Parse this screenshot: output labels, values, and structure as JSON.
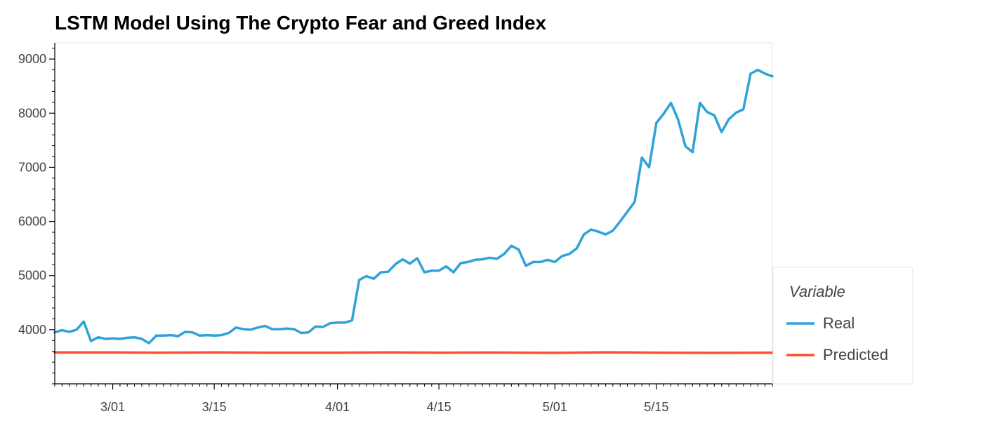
{
  "chart_data": {
    "type": "line",
    "title": "LSTM Model Using The Crypto Fear and Greed Index",
    "xlabel": "",
    "ylabel": "",
    "x_start": "2018-02-21",
    "x_end": "2018-05-31",
    "ylim": [
      3000,
      9300
    ],
    "y_ticks": [
      4000,
      5000,
      6000,
      7000,
      8000,
      9000
    ],
    "x_ticks": [
      {
        "label": "3/01",
        "date": "2018-03-01"
      },
      {
        "label": "3/15",
        "date": "2018-03-15"
      },
      {
        "label": "4/01",
        "date": "2018-04-01"
      },
      {
        "label": "4/15",
        "date": "2018-04-15"
      },
      {
        "label": "5/01",
        "date": "2018-05-01"
      },
      {
        "label": "5/15",
        "date": "2018-05-15"
      }
    ],
    "grid": false,
    "legend_title": "Variable",
    "legend_position": "right",
    "series": [
      {
        "name": "Real",
        "color": "#30a2da",
        "x": [
          "2018-02-21",
          "2018-02-22",
          "2018-02-23",
          "2018-02-24",
          "2018-02-25",
          "2018-02-26",
          "2018-02-27",
          "2018-02-28",
          "2018-03-01",
          "2018-03-02",
          "2018-03-03",
          "2018-03-04",
          "2018-03-05",
          "2018-03-06",
          "2018-03-07",
          "2018-03-08",
          "2018-03-09",
          "2018-03-10",
          "2018-03-11",
          "2018-03-12",
          "2018-03-13",
          "2018-03-14",
          "2018-03-15",
          "2018-03-16",
          "2018-03-17",
          "2018-03-18",
          "2018-03-19",
          "2018-03-20",
          "2018-03-21",
          "2018-03-22",
          "2018-03-23",
          "2018-03-24",
          "2018-03-25",
          "2018-03-26",
          "2018-03-27",
          "2018-03-28",
          "2018-03-29",
          "2018-03-30",
          "2018-03-31",
          "2018-04-01",
          "2018-04-02",
          "2018-04-03",
          "2018-04-04",
          "2018-04-05",
          "2018-04-06",
          "2018-04-07",
          "2018-04-08",
          "2018-04-09",
          "2018-04-10",
          "2018-04-11",
          "2018-04-12",
          "2018-04-13",
          "2018-04-14",
          "2018-04-15",
          "2018-04-16",
          "2018-04-17",
          "2018-04-18",
          "2018-04-19",
          "2018-04-20",
          "2018-04-21",
          "2018-04-22",
          "2018-04-23",
          "2018-04-24",
          "2018-04-25",
          "2018-04-26",
          "2018-04-27",
          "2018-04-28",
          "2018-04-29",
          "2018-04-30",
          "2018-05-01",
          "2018-05-02",
          "2018-05-03",
          "2018-05-04",
          "2018-05-05",
          "2018-05-06",
          "2018-05-07",
          "2018-05-08",
          "2018-05-09",
          "2018-05-10",
          "2018-05-11",
          "2018-05-12",
          "2018-05-13",
          "2018-05-14",
          "2018-05-15",
          "2018-05-16",
          "2018-05-17",
          "2018-05-18",
          "2018-05-19",
          "2018-05-20",
          "2018-05-21",
          "2018-05-22",
          "2018-05-23",
          "2018-05-24",
          "2018-05-25",
          "2018-05-26",
          "2018-05-27",
          "2018-05-28",
          "2018-05-29",
          "2018-05-30",
          "2018-05-31"
        ],
        "values": [
          3950,
          3990,
          3960,
          4000,
          4150,
          3790,
          3860,
          3830,
          3840,
          3830,
          3850,
          3860,
          3830,
          3750,
          3890,
          3890,
          3900,
          3880,
          3960,
          3950,
          3890,
          3900,
          3890,
          3900,
          3940,
          4040,
          4010,
          4000,
          4040,
          4070,
          4010,
          4010,
          4020,
          4010,
          3940,
          3950,
          4060,
          4050,
          4120,
          4130,
          4130,
          4170,
          4920,
          4990,
          4940,
          5060,
          5070,
          5210,
          5300,
          5220,
          5320,
          5060,
          5090,
          5090,
          5170,
          5060,
          5230,
          5250,
          5290,
          5300,
          5330,
          5310,
          5400,
          5550,
          5480,
          5180,
          5250,
          5250,
          5290,
          5250,
          5360,
          5400,
          5500,
          5760,
          5850,
          5810,
          5760,
          5830,
          6000,
          6180,
          6360,
          7180,
          7000,
          7820,
          7990,
          8190,
          7880,
          7390,
          7280,
          8190,
          8020,
          7960,
          7650,
          7890,
          8010,
          8070,
          8730,
          8800,
          8730,
          8680
        ]
      },
      {
        "name": "Predicted",
        "color": "#fc4f30",
        "x": [
          "2018-02-21",
          "2018-03-01",
          "2018-03-07",
          "2018-03-15",
          "2018-03-22",
          "2018-04-01",
          "2018-04-08",
          "2018-04-15",
          "2018-04-22",
          "2018-05-01",
          "2018-05-08",
          "2018-05-15",
          "2018-05-22",
          "2018-05-31"
        ],
        "values": [
          3580,
          3580,
          3575,
          3580,
          3575,
          3575,
          3580,
          3575,
          3578,
          3572,
          3582,
          3575,
          3572,
          3575
        ]
      }
    ]
  }
}
